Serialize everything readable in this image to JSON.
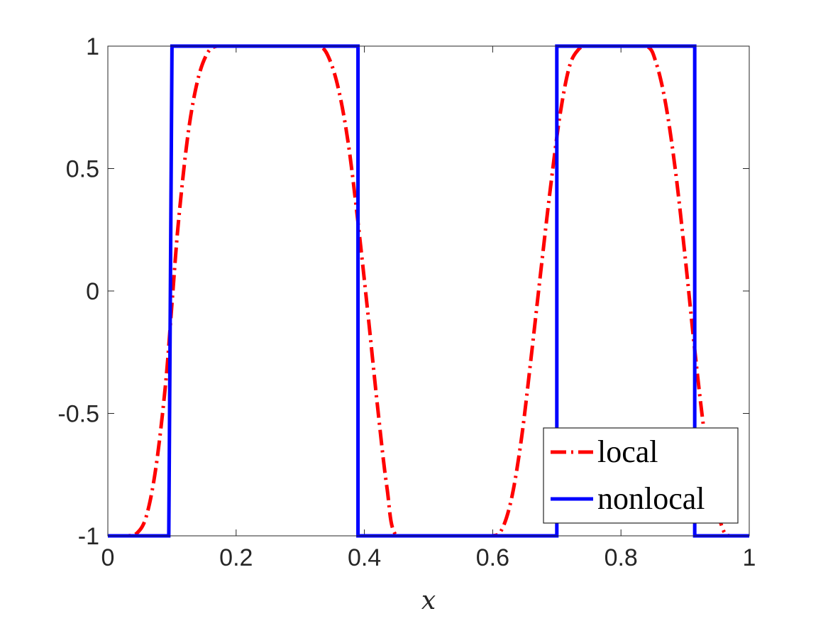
{
  "chart_data": {
    "type": "line",
    "xlabel": "x",
    "ylabel": "",
    "title": "",
    "xlim": [
      0,
      1
    ],
    "ylim": [
      -1,
      1
    ],
    "x_ticks": [
      "0",
      "0.2",
      "0.4",
      "0.6",
      "0.8",
      "1"
    ],
    "x_tick_values": [
      0,
      0.2,
      0.4,
      0.6,
      0.8,
      1
    ],
    "y_ticks": [
      "1",
      "0.5",
      "0",
      "-0.5",
      "-1"
    ],
    "y_tick_values": [
      1,
      0.5,
      0,
      -0.5,
      -1
    ],
    "grid": false,
    "legend_position": "bottom-right",
    "series": [
      {
        "name": "local",
        "color": "#ff0000",
        "style": "dash-dot",
        "x": [
          0,
          0.03,
          0.045,
          0.06,
          0.075,
          0.09,
          0.1,
          0.11,
          0.125,
          0.14,
          0.155,
          0.17,
          0.2,
          0.25,
          0.3,
          0.33,
          0.345,
          0.36,
          0.375,
          0.39,
          0.405,
          0.42,
          0.435,
          0.45,
          0.5,
          0.55,
          0.6,
          0.615,
          0.63,
          0.645,
          0.66,
          0.675,
          0.69,
          0.705,
          0.72,
          0.735,
          0.745,
          0.76,
          0.8,
          0.84,
          0.855,
          0.87,
          0.885,
          0.9,
          0.915,
          0.93,
          0.945,
          0.96,
          0.97,
          1.0
        ],
        "y": [
          -1,
          -1,
          -0.99,
          -0.92,
          -0.72,
          -0.38,
          -0.05,
          0.28,
          0.64,
          0.86,
          0.97,
          1.0,
          1.0,
          1.0,
          1.0,
          1.0,
          0.95,
          0.82,
          0.6,
          0.28,
          -0.08,
          -0.46,
          -0.8,
          -1.0,
          -1.0,
          -1.0,
          -1.0,
          -0.97,
          -0.84,
          -0.6,
          -0.27,
          0.08,
          0.42,
          0.72,
          0.92,
          0.99,
          1.0,
          1.0,
          1.0,
          1.0,
          0.93,
          0.76,
          0.49,
          0.14,
          -0.24,
          -0.58,
          -0.84,
          -0.98,
          -1.0,
          -1.0
        ]
      },
      {
        "name": "nonlocal",
        "color": "#0000ff",
        "style": "solid",
        "x": [
          0,
          0.095,
          0.1,
          0.39,
          0.39,
          0.7,
          0.7,
          0.915,
          0.915,
          1.0
        ],
        "y": [
          -1,
          -1,
          1,
          1,
          -1,
          -1,
          1,
          1,
          -1,
          -1
        ]
      }
    ]
  }
}
